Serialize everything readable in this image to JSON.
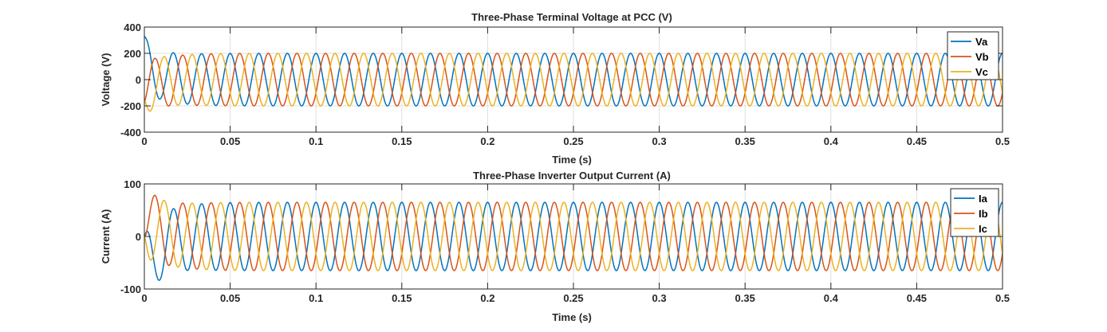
{
  "chart_data": [
    {
      "type": "line",
      "title": "Three-Phase Terminal Voltage at PCC (V)",
      "xlabel": "Time (s)",
      "ylabel": "Voltage (V)",
      "xlim": [
        0,
        0.5
      ],
      "ylim": [
        -400,
        400
      ],
      "xticks": [
        0,
        0.05,
        0.1,
        0.15,
        0.2,
        0.25,
        0.3,
        0.35,
        0.4,
        0.45,
        0.5
      ],
      "xtick_labels": [
        "0",
        "0.05",
        "0.1",
        "0.15",
        "0.2",
        "0.25",
        "0.3",
        "0.35",
        "0.4",
        "0.45",
        "0.5"
      ],
      "yticks": [
        400,
        200,
        0,
        -200,
        -400
      ],
      "ytick_labels": [
        "400",
        "200",
        "0",
        "-200",
        "-400"
      ],
      "grid": true,
      "legend_position": "top-right",
      "frequency_hz": 60,
      "series": [
        {
          "name": "Va",
          "color": "#0072BD",
          "amplitude": 200,
          "phase_deg": 0,
          "initial_value": 330,
          "transient_extra": 230
        },
        {
          "name": "Vb",
          "color": "#D95319",
          "amplitude": 200,
          "phase_deg": -120,
          "initial_value": -170,
          "transient_extra": 230
        },
        {
          "name": "Vc",
          "color": "#EDB120",
          "amplitude": 200,
          "phase_deg": 120,
          "initial_value": -160,
          "transient_extra": 230
        }
      ]
    },
    {
      "type": "line",
      "title": "Three-Phase Inverter Output Current (A)",
      "xlabel": "Time (s)",
      "ylabel": "Current (A)",
      "xlim": [
        0,
        0.5
      ],
      "ylim": [
        -100,
        100
      ],
      "xticks": [
        0,
        0.05,
        0.1,
        0.15,
        0.2,
        0.25,
        0.3,
        0.35,
        0.4,
        0.45,
        0.5
      ],
      "xtick_labels": [
        "0",
        "0.05",
        "0.1",
        "0.15",
        "0.2",
        "0.25",
        "0.3",
        "0.35",
        "0.4",
        "0.45",
        "0.5"
      ],
      "yticks": [
        100,
        0,
        -100
      ],
      "ytick_labels": [
        "100",
        "0",
        "-100"
      ],
      "grid": true,
      "legend_position": "top-right",
      "frequency_hz": 60,
      "series": [
        {
          "name": "Ia",
          "color": "#0072BD",
          "amplitude": 65,
          "phase_deg": 0,
          "initial_value": 0,
          "transient_extra": 90
        },
        {
          "name": "Ib",
          "color": "#D95319",
          "amplitude": 65,
          "phase_deg": -120,
          "initial_value": 0,
          "transient_extra": 90
        },
        {
          "name": "Ic",
          "color": "#EDB120",
          "amplitude": 65,
          "phase_deg": 120,
          "initial_value": 0,
          "transient_extra": 90
        }
      ]
    }
  ]
}
